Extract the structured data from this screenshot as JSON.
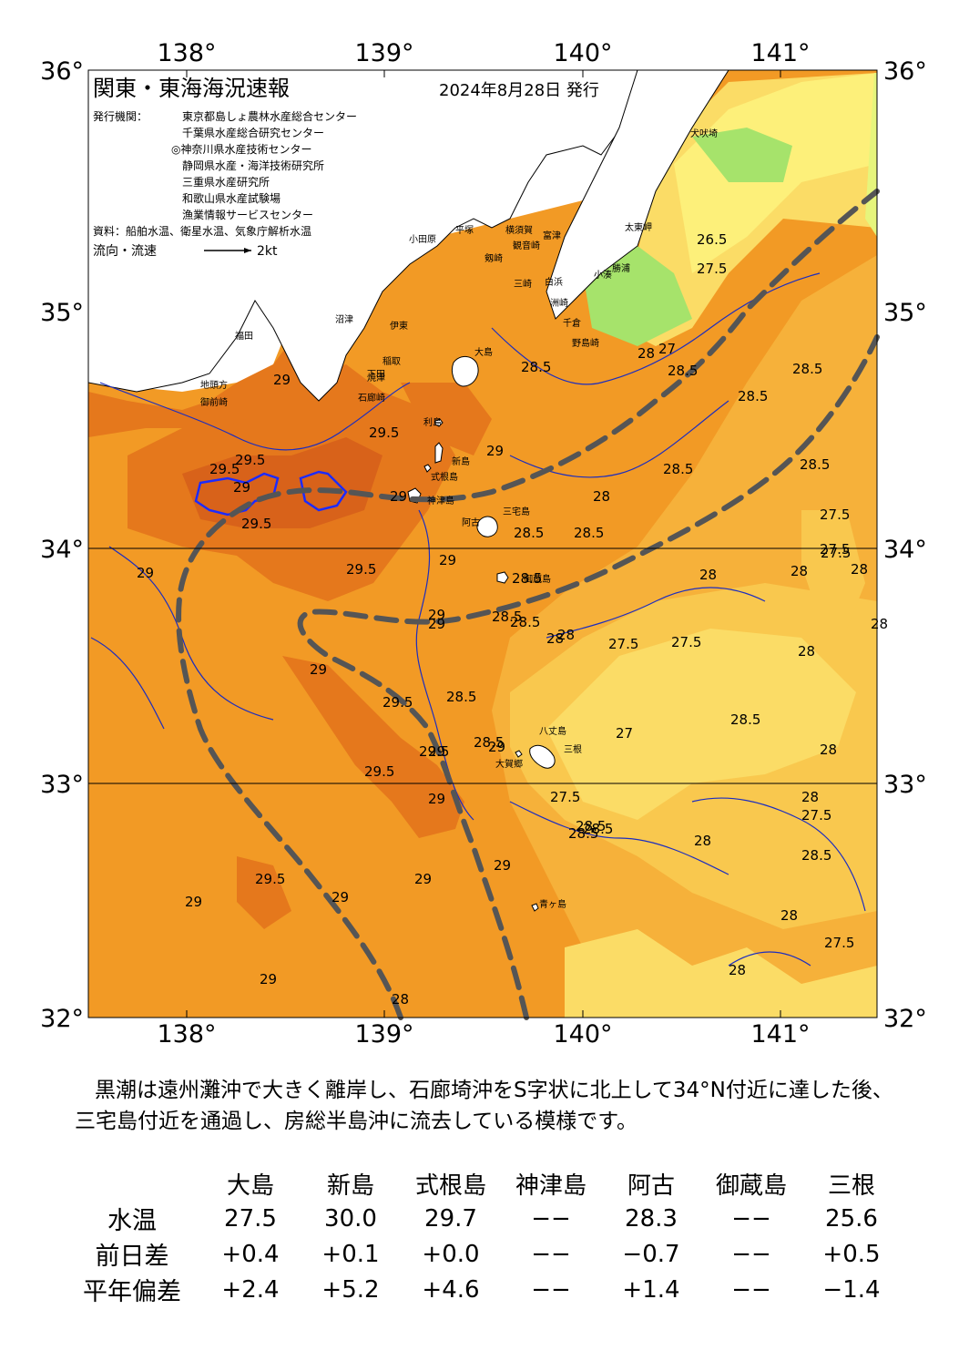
{
  "header": {
    "title": "関東・東海海況速報",
    "date": "2024年8月28日 発行",
    "issuer_label": "発行機関：",
    "issuers": [
      "東京都島しょ農林水産総合センター",
      "千葉県水産総合研究センター",
      "◎神奈川県水産技術センター",
      "静岡県水産・海洋技術研究所",
      "三重県水産研究所",
      "和歌山県水産試験場",
      "漁業情報サービスセンター"
    ],
    "source": "資料：船舶水温、衛星水温、気象庁解析水温",
    "current_label": "流向・流速",
    "current_scale": "2kt"
  },
  "axes": {
    "lon_ticks": [
      "138°",
      "139°",
      "140°",
      "141°"
    ],
    "lat_ticks": [
      "36°",
      "35°",
      "34°",
      "33°",
      "32°"
    ]
  },
  "map_labels": {
    "places": [
      {
        "text": "犬吠埼"
      },
      {
        "text": "太東岬"
      },
      {
        "text": "勝浦"
      },
      {
        "text": "小湊"
      },
      {
        "text": "洲崎"
      },
      {
        "text": "白浜"
      },
      {
        "text": "千倉"
      },
      {
        "text": "野島崎"
      },
      {
        "text": "平塚"
      },
      {
        "text": "横須賀"
      },
      {
        "text": "観音崎"
      },
      {
        "text": "富津"
      },
      {
        "text": "三崎"
      },
      {
        "text": "剱崎"
      },
      {
        "text": "小田原"
      },
      {
        "text": "沼津"
      },
      {
        "text": "伊東"
      },
      {
        "text": "焼津"
      },
      {
        "text": "稲取"
      },
      {
        "text": "下田"
      },
      {
        "text": "石廊崎"
      },
      {
        "text": "御前崎"
      },
      {
        "text": "地頭方"
      },
      {
        "text": "福田"
      },
      {
        "text": "大島"
      },
      {
        "text": "利島"
      },
      {
        "text": "新島"
      },
      {
        "text": "式根島"
      },
      {
        "text": "神津島"
      },
      {
        "text": "三宅島"
      },
      {
        "text": "阿古"
      },
      {
        "text": "御蔵島"
      },
      {
        "text": "八丈島"
      },
      {
        "text": "三根"
      },
      {
        "text": "大賀郷"
      },
      {
        "text": "青ヶ島"
      }
    ],
    "isotherms": [
      "29",
      "29.5",
      "29.5",
      "29",
      "29.5",
      "29.5",
      "29",
      "29.5",
      "29.5",
      "29",
      "29.5",
      "29",
      "28.5",
      "29",
      "28.5",
      "29",
      "29",
      "28",
      "28.5",
      "27.5",
      "27.5",
      "28",
      "27.5",
      "28",
      "27",
      "28.5",
      "28",
      "28.5",
      "28.5",
      "28.5",
      "26.5",
      "27.5",
      "27",
      "28",
      "28.5",
      "28.5",
      "28",
      "27.5",
      "28.5",
      "28",
      "28",
      "27.5",
      "28",
      "28.5",
      "28",
      "27.5",
      "28",
      "28",
      "28.5",
      "28.5",
      "28",
      "29",
      "29",
      "29",
      "29",
      "29",
      "29.5",
      "29",
      "29",
      "28.5",
      "29",
      "29",
      "28.5",
      "28.5",
      "29.5",
      "27.5",
      "28.5",
      "28",
      "28",
      "28.5",
      "27.5"
    ]
  },
  "summary_text": "黒潮は遠州灘沖で大きく離岸し、石廊埼沖をS字状に北上して34°N付近に達した後、三宅島付近を通過し、房総半島沖に流去している模様です。",
  "table": {
    "stations": [
      "大島",
      "新島",
      "式根島",
      "神津島",
      "阿古",
      "御蔵島",
      "三根"
    ],
    "rows": [
      {
        "label": "水温",
        "values": [
          "27.5",
          "30.0",
          "29.7",
          "−−",
          "28.3",
          "−−",
          "25.6"
        ]
      },
      {
        "label": "前日差",
        "values": [
          "+0.4",
          "+0.1",
          "+0.0",
          "−−",
          "−0.7",
          "−−",
          "+0.5"
        ]
      },
      {
        "label": "平年偏差",
        "values": [
          "+2.4",
          "+5.2",
          "+4.6",
          "−−",
          "+1.4",
          "−−",
          "−1.4"
        ]
      }
    ]
  },
  "colors": {
    "sst_30": "#d8621a",
    "sst_29_5": "#e5781c",
    "sst_29": "#f29a25",
    "sst_28_5": "#f6b13a",
    "sst_28": "#f9c84e",
    "sst_27_5": "#fbdc66",
    "sst_27": "#fdf07a",
    "sst_26_5": "#e6f57c",
    "sst_26": "#a6e36b",
    "land": "#ffffff",
    "contour": "#1c2dbf",
    "kuroshio": "#555555"
  }
}
